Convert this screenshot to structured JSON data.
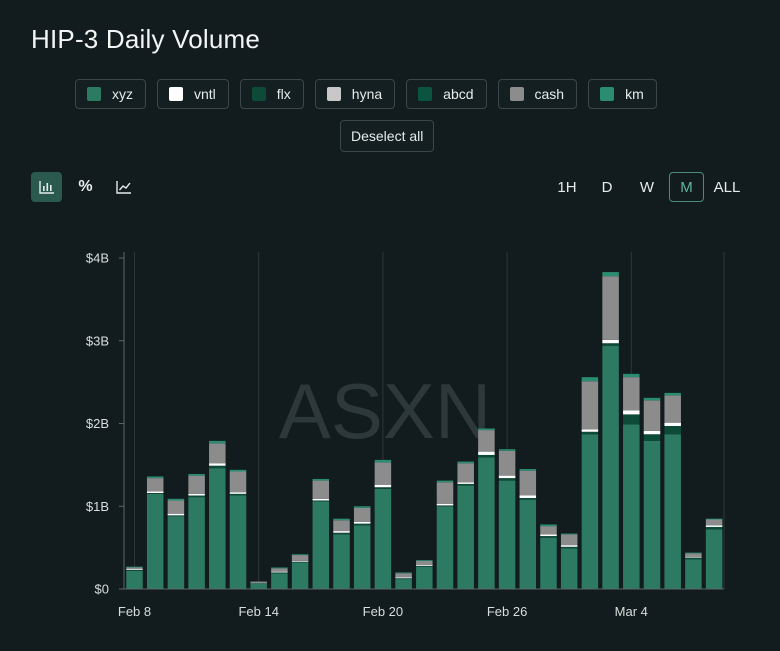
{
  "title": "HIP-3 Daily Volume",
  "legend": [
    {
      "label": "xyz",
      "color": "#2d7a62"
    },
    {
      "label": "vntl",
      "color": "#ffffff"
    },
    {
      "label": "flx",
      "color": "#0e4a38"
    },
    {
      "label": "hyna",
      "color": "#c8c8c8"
    },
    {
      "label": "abcd",
      "color": "#0b5540"
    },
    {
      "label": "cash",
      "color": "#8c8c8c"
    },
    {
      "label": "km",
      "color": "#2a8c70"
    }
  ],
  "deselect_label": "Deselect all",
  "view_buttons": [
    {
      "name": "bar-chart-icon",
      "glyph": "bar",
      "active": true
    },
    {
      "name": "percent-icon",
      "glyph": "%",
      "active": false
    },
    {
      "name": "line-chart-icon",
      "glyph": "line",
      "active": false
    }
  ],
  "timeframes": [
    {
      "label": "1H",
      "active": false
    },
    {
      "label": "D",
      "active": false
    },
    {
      "label": "W",
      "active": false
    },
    {
      "label": "M",
      "active": true
    },
    {
      "label": "ALL",
      "active": false
    }
  ],
  "watermark": "ASXN",
  "chart_data": {
    "type": "bar",
    "stacked": true,
    "ylim": [
      0,
      4000000000
    ],
    "y_ticks": [
      {
        "value": 0,
        "label": "$0"
      },
      {
        "value": 1000000000,
        "label": "$1B"
      },
      {
        "value": 2000000000,
        "label": "$2B"
      },
      {
        "value": 3000000000,
        "label": "$3B"
      },
      {
        "value": 4000000000,
        "label": "$4B"
      }
    ],
    "x_ticks": [
      {
        "index": 0,
        "label": "Feb 8"
      },
      {
        "index": 6,
        "label": "Feb 14"
      },
      {
        "index": 12,
        "label": "Feb 20"
      },
      {
        "index": 18,
        "label": "Feb 26"
      },
      {
        "index": 24,
        "label": "Mar 4"
      }
    ],
    "categories": [
      "Feb 8",
      "Feb 9",
      "Feb 10",
      "Feb 11",
      "Feb 12",
      "Feb 13",
      "Feb 14",
      "Feb 15",
      "Feb 16",
      "Feb 17",
      "Feb 18",
      "Feb 19",
      "Feb 20",
      "Feb 21",
      "Feb 22",
      "Feb 23",
      "Feb 24",
      "Feb 25",
      "Feb 26",
      "Feb 27",
      "Feb 28",
      "Mar 1",
      "Mar 2",
      "Mar 3",
      "Mar 4",
      "Mar 5",
      "Mar 6",
      "Mar 7",
      "Mar 8",
      "Mar 9"
    ],
    "series": [
      {
        "name": "xyz",
        "color": "#2d7a62",
        "values": [
          0.22,
          1.15,
          0.88,
          1.11,
          1.46,
          1.13,
          0.07,
          0.19,
          0.32,
          1.06,
          0.66,
          0.77,
          1.21,
          0.12,
          0.27,
          1.0,
          1.25,
          1.59,
          1.31,
          1.08,
          0.62,
          0.49,
          1.87,
          2.94,
          1.99,
          1.79,
          1.87,
          0.36,
          0.72,
          0
        ]
      },
      {
        "name": "flx",
        "color": "#0e4a38",
        "values": [
          0.01,
          0.01,
          0.01,
          0.02,
          0.03,
          0.02,
          0.0,
          0.01,
          0.01,
          0.01,
          0.02,
          0.02,
          0.02,
          0.01,
          0.01,
          0.01,
          0.02,
          0.03,
          0.03,
          0.02,
          0.02,
          0.02,
          0.03,
          0.03,
          0.12,
          0.08,
          0.1,
          0.02,
          0.03,
          0
        ]
      },
      {
        "name": "vntl",
        "color": "#ffffff",
        "values": [
          0.01,
          0.02,
          0.02,
          0.02,
          0.03,
          0.02,
          0.0,
          0.01,
          0.01,
          0.02,
          0.02,
          0.02,
          0.03,
          0.01,
          0.01,
          0.02,
          0.02,
          0.04,
          0.03,
          0.03,
          0.02,
          0.02,
          0.03,
          0.04,
          0.05,
          0.04,
          0.04,
          0.01,
          0.02,
          0
        ]
      },
      {
        "name": "cash",
        "color": "#8c8c8c",
        "values": [
          0.02,
          0.16,
          0.16,
          0.22,
          0.24,
          0.25,
          0.02,
          0.04,
          0.07,
          0.22,
          0.13,
          0.17,
          0.27,
          0.05,
          0.05,
          0.26,
          0.23,
          0.26,
          0.3,
          0.3,
          0.1,
          0.13,
          0.58,
          0.77,
          0.4,
          0.37,
          0.33,
          0.04,
          0.07,
          0
        ]
      },
      {
        "name": "km",
        "color": "#2a8c70",
        "values": [
          0.01,
          0.02,
          0.02,
          0.02,
          0.03,
          0.02,
          0.0,
          0.01,
          0.01,
          0.02,
          0.02,
          0.02,
          0.03,
          0.01,
          0.01,
          0.02,
          0.02,
          0.02,
          0.02,
          0.02,
          0.02,
          0.01,
          0.05,
          0.05,
          0.04,
          0.03,
          0.03,
          0.01,
          0.01,
          0
        ]
      }
    ]
  }
}
